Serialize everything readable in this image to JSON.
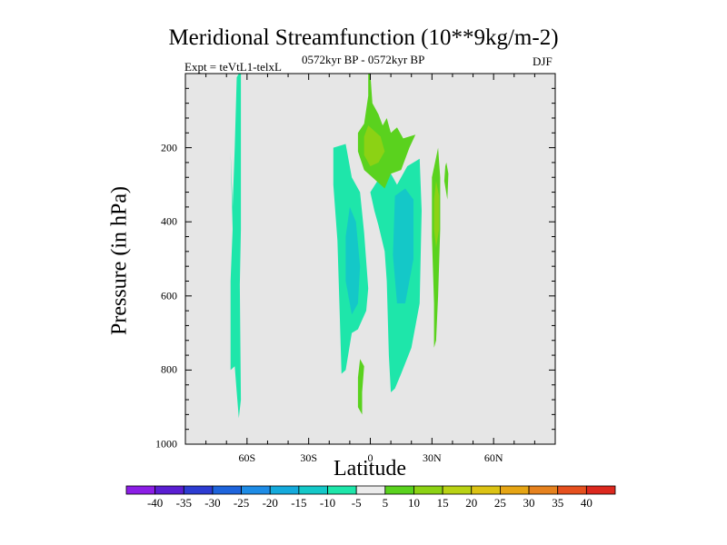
{
  "chart_data": {
    "type": "contour",
    "title": "Meridional Streamfunction (10**9kg/m-2)",
    "subtitle_left": "Expt = teVtL1-telxL",
    "subtitle_center": "0572kyr BP - 0572kyr BP",
    "subtitle_right": "DJF",
    "xlabel": "Latitude",
    "ylabel": "Pressure (in hPa)",
    "xlim": [
      -90,
      90
    ],
    "ylim": [
      1000,
      0
    ],
    "x_ticks": [
      {
        "value": -60,
        "label": "60S"
      },
      {
        "value": -30,
        "label": "30S"
      },
      {
        "value": 0,
        "label": "0"
      },
      {
        "value": 30,
        "label": "30N"
      },
      {
        "value": 60,
        "label": "60N"
      }
    ],
    "y_ticks": [
      {
        "value": 200,
        "label": "200"
      },
      {
        "value": 400,
        "label": "400"
      },
      {
        "value": 600,
        "label": "600"
      },
      {
        "value": 800,
        "label": "800"
      },
      {
        "value": 1000,
        "label": "1000"
      }
    ],
    "missing_color": "#e6e6e6",
    "colorbar": {
      "levels": [
        "-40",
        "-35",
        "-30",
        "-25",
        "-20",
        "-15",
        "-10",
        "-5",
        "5",
        "10",
        "15",
        "20",
        "25",
        "30",
        "35",
        "40"
      ],
      "colors": [
        "#8c1ee6",
        "#5a1ed2",
        "#2d3cd2",
        "#1e64dc",
        "#1e8ce6",
        "#14aadc",
        "#14c8c8",
        "#1ee6aa",
        "#ebebeb",
        "#5ad21e",
        "#8cd214",
        "#b9d214",
        "#dcc314",
        "#e6a514",
        "#e6821e",
        "#e6501e",
        "#dc281e"
      ]
    },
    "filled_regions": [
      {
        "name": "sh-polar-cell",
        "fill_index": 7,
        "points": [
          [
            -65,
            10
          ],
          [
            -64,
            0
          ],
          [
            -63,
            0
          ],
          [
            -63,
            70
          ],
          [
            -63,
            420
          ],
          [
            -63.5,
            570
          ],
          [
            -63,
            880
          ],
          [
            -64,
            930
          ],
          [
            -65,
            860
          ],
          [
            -66,
            790
          ],
          [
            -68,
            800
          ],
          [
            -68,
            560
          ],
          [
            -67,
            420
          ],
          [
            -68,
            210
          ],
          [
            -67,
            360
          ],
          [
            -66,
            200
          ]
        ]
      },
      {
        "name": "sh-tropical-cell",
        "fill_index": 7,
        "points": [
          [
            -18,
            200
          ],
          [
            -12,
            190
          ],
          [
            -9,
            280
          ],
          [
            -5,
            320
          ],
          [
            -3,
            430
          ],
          [
            -1,
            580
          ],
          [
            -2,
            640
          ],
          [
            -6,
            690
          ],
          [
            -9,
            700
          ],
          [
            -12,
            800
          ],
          [
            -14,
            810
          ],
          [
            -15,
            630
          ],
          [
            -16,
            450
          ],
          [
            -18,
            300
          ]
        ]
      },
      {
        "name": "sh-tropical-core",
        "fill_index": 6,
        "points": [
          [
            -10,
            360
          ],
          [
            -7,
            400
          ],
          [
            -5,
            520
          ],
          [
            -6,
            620
          ],
          [
            -9,
            650
          ],
          [
            -12,
            560
          ],
          [
            -12,
            440
          ]
        ]
      },
      {
        "name": "nh-tropical-cell",
        "fill_index": 7,
        "points": [
          [
            0,
            320
          ],
          [
            8,
            250
          ],
          [
            13,
            300
          ],
          [
            18,
            250
          ],
          [
            24,
            230
          ],
          [
            25,
            370
          ],
          [
            24,
            620
          ],
          [
            20,
            740
          ],
          [
            15,
            810
          ],
          [
            12,
            850
          ],
          [
            10,
            860
          ],
          [
            9,
            760
          ],
          [
            8,
            560
          ],
          [
            7,
            480
          ],
          [
            4,
            410
          ],
          [
            2,
            370
          ]
        ]
      },
      {
        "name": "nh-tropical-core",
        "fill_index": 6,
        "points": [
          [
            12,
            330
          ],
          [
            17,
            310
          ],
          [
            21,
            340
          ],
          [
            21,
            500
          ],
          [
            17,
            620
          ],
          [
            13,
            620
          ],
          [
            11,
            490
          ]
        ]
      },
      {
        "name": "equatorial-upper-pos",
        "fill_index": 9,
        "points": [
          [
            0,
            -20
          ],
          [
            1,
            80
          ],
          [
            4,
            110
          ],
          [
            6,
            140
          ],
          [
            8,
            120
          ],
          [
            10,
            160
          ],
          [
            13,
            145
          ],
          [
            16,
            175
          ],
          [
            22,
            165
          ],
          [
            19,
            200
          ],
          [
            15,
            260
          ],
          [
            10,
            270
          ],
          [
            7,
            310
          ],
          [
            3,
            290
          ],
          [
            -3,
            260
          ],
          [
            -6,
            210
          ],
          [
            -6,
            160
          ],
          [
            -3,
            135
          ],
          [
            -1,
            60
          ],
          [
            -1,
            -20
          ]
        ]
      },
      {
        "name": "equatorial-upper-core",
        "fill_index": 10,
        "points": [
          [
            -3,
            170
          ],
          [
            -1,
            140
          ],
          [
            2,
            155
          ],
          [
            5,
            170
          ],
          [
            7,
            210
          ],
          [
            4,
            240
          ],
          [
            0,
            250
          ],
          [
            -3,
            220
          ]
        ]
      },
      {
        "name": "equatorial-lower-pos",
        "fill_index": 9,
        "points": [
          [
            -5,
            770
          ],
          [
            -3,
            790
          ],
          [
            -4,
            860
          ],
          [
            -4,
            920
          ],
          [
            -6,
            900
          ],
          [
            -6,
            820
          ]
        ]
      },
      {
        "name": "nh-subtropical-pos",
        "fill_index": 9,
        "points": [
          [
            33,
            200
          ],
          [
            34,
            280
          ],
          [
            34,
            420
          ],
          [
            33,
            600
          ],
          [
            32,
            720
          ],
          [
            31,
            740
          ],
          [
            31,
            620
          ],
          [
            30,
            440
          ],
          [
            30,
            280
          ]
        ]
      },
      {
        "name": "nh-subtropical-core",
        "fill_index": 10,
        "points": [
          [
            32,
            290
          ],
          [
            33.5,
            330
          ],
          [
            33.5,
            420
          ],
          [
            32,
            470
          ],
          [
            31,
            420
          ],
          [
            31,
            340
          ]
        ]
      },
      {
        "name": "nh-sliver-pos",
        "fill_index": 9,
        "points": [
          [
            37,
            240
          ],
          [
            38,
            270
          ],
          [
            37.5,
            340
          ],
          [
            36,
            290
          ],
          [
            36.5,
            250
          ]
        ]
      }
    ]
  }
}
